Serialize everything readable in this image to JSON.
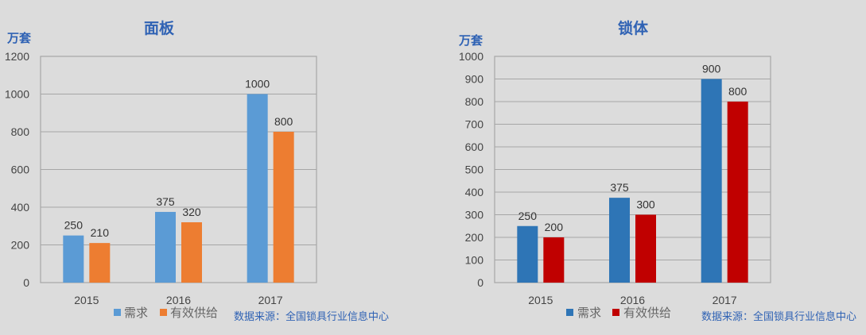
{
  "chart_data": [
    {
      "type": "bar",
      "title": "面板",
      "ylabel": "万套",
      "xlabel": "",
      "categories": [
        "2015",
        "2016",
        "2017"
      ],
      "ylim": [
        0,
        1200
      ],
      "yticks": [
        0,
        200,
        400,
        600,
        800,
        1000,
        1200
      ],
      "grid": true,
      "legend_placement": "bottom",
      "series": [
        {
          "name": "需求",
          "values": [
            250,
            375,
            1000
          ],
          "color": "#5b9bd5"
        },
        {
          "name": "有效供给",
          "values": [
            210,
            320,
            800
          ],
          "color": "#ed7d31"
        }
      ],
      "source": "数据来源：全国锁具行业信息中心"
    },
    {
      "type": "bar",
      "title": "锁体",
      "ylabel": "万套",
      "xlabel": "",
      "categories": [
        "2015",
        "2016",
        "2017"
      ],
      "ylim": [
        0,
        1000
      ],
      "yticks": [
        0,
        100,
        200,
        300,
        400,
        500,
        600,
        700,
        800,
        900,
        1000
      ],
      "grid": true,
      "legend_placement": "bottom",
      "series": [
        {
          "name": "需求",
          "values": [
            250,
            375,
            900
          ],
          "color": "#2e75b6"
        },
        {
          "name": "有效供给",
          "values": [
            200,
            300,
            800
          ],
          "color": "#c00000"
        }
      ],
      "source": "数据来源：全国锁具行业信息中心"
    }
  ]
}
